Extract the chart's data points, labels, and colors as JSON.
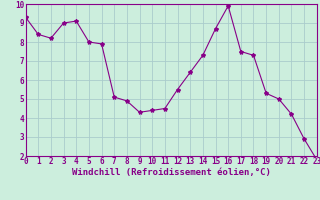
{
  "x": [
    0,
    1,
    2,
    3,
    4,
    5,
    6,
    7,
    8,
    9,
    10,
    11,
    12,
    13,
    14,
    15,
    16,
    17,
    18,
    19,
    20,
    21,
    22,
    23
  ],
  "y": [
    9.3,
    8.4,
    8.2,
    9.0,
    9.1,
    8.0,
    7.9,
    5.1,
    4.9,
    4.3,
    4.4,
    4.5,
    5.5,
    6.4,
    7.3,
    8.7,
    9.9,
    7.5,
    7.3,
    5.3,
    5.0,
    4.2,
    2.9,
    1.8
  ],
  "line_color": "#880088",
  "marker": "*",
  "marker_size": 3,
  "bg_color": "#cceedd",
  "grid_color": "#aacccc",
  "xlabel": "Windchill (Refroidissement éolien,°C)",
  "xlim": [
    0,
    23
  ],
  "ylim": [
    2,
    10
  ],
  "xticks": [
    0,
    1,
    2,
    3,
    4,
    5,
    6,
    7,
    8,
    9,
    10,
    11,
    12,
    13,
    14,
    15,
    16,
    17,
    18,
    19,
    20,
    21,
    22,
    23
  ],
  "yticks": [
    2,
    3,
    4,
    5,
    6,
    7,
    8,
    9,
    10
  ],
  "xlabel_fontsize": 6.5,
  "tick_fontsize": 5.5
}
